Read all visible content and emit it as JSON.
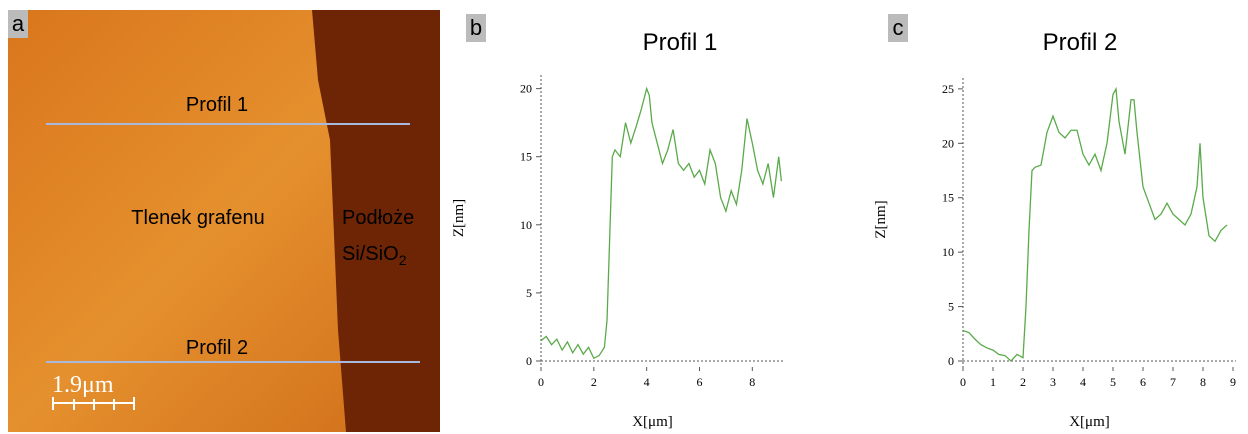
{
  "image": {
    "label": "a",
    "line_1": "Profil 1",
    "line_2": "Profil 2",
    "region_left": "Tlenek grafenu",
    "region_right": "Podłoże",
    "region_right_formula": "Si/SiO",
    "region_right_subscript": "2",
    "scale_bar": "1.9μm"
  },
  "chart_data": [
    {
      "type": "line",
      "panel_label": "b",
      "title": "Profil 1",
      "x_label": "X[μm]",
      "y_label": "Z[nm]",
      "x": [
        0,
        0.2,
        0.4,
        0.6,
        0.8,
        1.0,
        1.2,
        1.4,
        1.6,
        1.8,
        2.0,
        2.2,
        2.4,
        2.5,
        2.6,
        2.7,
        2.8,
        3.0,
        3.2,
        3.4,
        3.6,
        3.8,
        4.0,
        4.1,
        4.2,
        4.4,
        4.6,
        4.8,
        5.0,
        5.2,
        5.4,
        5.6,
        5.8,
        6.0,
        6.2,
        6.4,
        6.6,
        6.8,
        7.0,
        7.2,
        7.4,
        7.6,
        7.8,
        8.0,
        8.2,
        8.4,
        8.6,
        8.8,
        9.0,
        9.1
      ],
      "series": [
        {
          "color": "#5aaa4a",
          "values": [
            1.5,
            1.8,
            1.2,
            1.6,
            0.8,
            1.4,
            0.6,
            1.2,
            0.5,
            1.0,
            0.2,
            0.4,
            1.0,
            3,
            9,
            15,
            15.5,
            15,
            17.5,
            16,
            17.2,
            18.5,
            20,
            19.5,
            17.5,
            16,
            14.5,
            15.5,
            17,
            14.5,
            14,
            14.5,
            13.5,
            14,
            13,
            15.5,
            14.5,
            12,
            11,
            12.5,
            11.5,
            14,
            17.8,
            16,
            14,
            13,
            14.5,
            12,
            15,
            13.2
          ]
        }
      ],
      "xlim": [
        0,
        9.2
      ],
      "ylim": [
        0,
        21
      ],
      "xticks": [
        0,
        2,
        4,
        6,
        8
      ],
      "yticks": [
        0,
        5,
        10,
        15,
        20
      ]
    },
    {
      "type": "line",
      "panel_label": "c",
      "title": "Profil 2",
      "x_label": "X[μm]",
      "y_label": "Z[nm]",
      "x": [
        0,
        0.2,
        0.4,
        0.6,
        0.8,
        1.0,
        1.2,
        1.4,
        1.6,
        1.8,
        2.0,
        2.1,
        2.2,
        2.3,
        2.4,
        2.6,
        2.8,
        3.0,
        3.2,
        3.4,
        3.6,
        3.8,
        4.0,
        4.2,
        4.4,
        4.6,
        4.8,
        5.0,
        5.1,
        5.2,
        5.4,
        5.6,
        5.7,
        5.8,
        6.0,
        6.2,
        6.4,
        6.6,
        6.8,
        7.0,
        7.2,
        7.4,
        7.6,
        7.8,
        7.9,
        8.0,
        8.2,
        8.4,
        8.6,
        8.8
      ],
      "series": [
        {
          "color": "#5aaa4a",
          "values": [
            2.8,
            2.6,
            2,
            1.5,
            1.2,
            1,
            0.6,
            0.5,
            0,
            0.6,
            0.3,
            5,
            12,
            17.5,
            17.8,
            18,
            21,
            22.5,
            21,
            20.5,
            21.2,
            21.2,
            19,
            18,
            19,
            17.5,
            20,
            24.5,
            25,
            22,
            19,
            24,
            24,
            21,
            16,
            14.5,
            13,
            13.5,
            14.5,
            13.5,
            13,
            12.5,
            13.5,
            16,
            20,
            15,
            11.5,
            11,
            12,
            12.5
          ]
        }
      ],
      "xlim": [
        0,
        9.1
      ],
      "ylim": [
        0,
        26
      ],
      "xticks": [
        0,
        1,
        2,
        3,
        4,
        5,
        6,
        7,
        8,
        9
      ],
      "yticks": [
        0,
        5,
        10,
        15,
        20,
        25
      ]
    }
  ]
}
